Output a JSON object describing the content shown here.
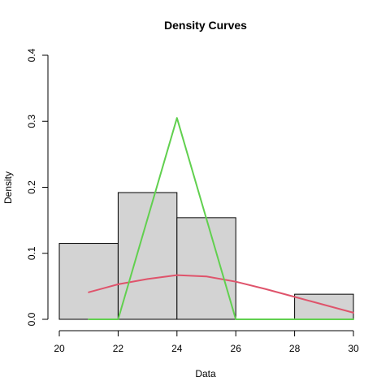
{
  "chart_data": {
    "type": "histogram",
    "title": "Density Curves",
    "xlabel": "Data",
    "ylabel": "Density",
    "xlim": [
      20,
      30
    ],
    "ylim": [
      0,
      0.4
    ],
    "x_ticks": [
      20,
      22,
      24,
      26,
      28,
      30
    ],
    "y_ticks": [
      0.0,
      0.1,
      0.2,
      0.3,
      0.4
    ],
    "grid": false,
    "bars": [
      {
        "start": 20,
        "end": 22,
        "value": 0.115
      },
      {
        "start": 22,
        "end": 24,
        "value": 0.192
      },
      {
        "start": 24,
        "end": 26,
        "value": 0.154
      },
      {
        "start": 26,
        "end": 28,
        "value": 0.0
      },
      {
        "start": 28,
        "end": 30,
        "value": 0.038
      }
    ],
    "bar_fill": "#d3d3d3",
    "series": [
      {
        "color": "#df536b",
        "x": [
          21,
          22,
          23,
          24,
          25,
          26,
          27,
          28,
          29,
          30
        ],
        "y": [
          0.041,
          0.053,
          0.061,
          0.067,
          0.065,
          0.057,
          0.046,
          0.034,
          0.022,
          0.01
        ]
      },
      {
        "color": "#61d04f",
        "x": [
          21,
          22,
          24,
          26,
          28,
          30
        ],
        "y": [
          0.0,
          0.0,
          0.305,
          0.0,
          0.0,
          0.0
        ]
      }
    ]
  }
}
